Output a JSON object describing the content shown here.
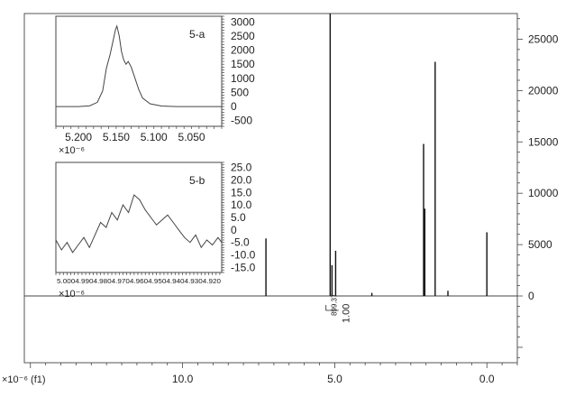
{
  "chart_data": [
    {
      "id": "main",
      "type": "line",
      "xaxis": {
        "ticks": [
          "10.0",
          "5.0",
          "0.0"
        ],
        "tick_values": [
          10,
          5,
          0
        ],
        "label": "×10⁻⁶ (f1)",
        "range": [
          15.2,
          -1.0
        ],
        "reversed": true
      },
      "yaxis": {
        "ticks": [
          "0",
          "5000",
          "10000",
          "15000",
          "20000",
          "25000"
        ],
        "tick_values": [
          0,
          5000,
          10000,
          15000,
          20000,
          25000
        ],
        "range": [
          -6500,
          27500
        ],
        "side": "right"
      },
      "grid": false,
      "peaks": [
        {
          "x": 7.26,
          "y": 5600
        },
        {
          "x": 5.15,
          "y": 27500
        },
        {
          "x": 5.09,
          "y": 3000
        },
        {
          "x": 4.97,
          "y": 4400
        },
        {
          "x": 3.78,
          "y": 300
        },
        {
          "x": 2.08,
          "y": 14800
        },
        {
          "x": 2.04,
          "y": 8500
        },
        {
          "x": 1.7,
          "y": 22800
        },
        {
          "x": 1.28,
          "y": 500
        },
        {
          "x": 0.0,
          "y": 6200
        }
      ],
      "integral_labels": [
        "899.37",
        "1.00"
      ]
    },
    {
      "id": "inset-a",
      "type": "line",
      "label": "5-a",
      "xaxis": {
        "ticks": [
          "5.200",
          "5.150",
          "5.100",
          "5.050"
        ],
        "tick_values": [
          5.2,
          5.15,
          5.1,
          5.05
        ],
        "label": "×10⁻⁶",
        "range": [
          5.23,
          5.01
        ],
        "reversed": true
      },
      "yaxis": {
        "ticks": [
          "3000",
          "2500",
          "2000",
          "1500",
          "1000",
          "500",
          "0",
          "-500"
        ],
        "tick_values": [
          3000,
          2500,
          2000,
          1500,
          1000,
          500,
          0,
          -500
        ],
        "range": [
          -700,
          3200
        ],
        "side": "right"
      },
      "x": [
        5.23,
        5.2,
        5.185,
        5.175,
        5.168,
        5.163,
        5.158,
        5.154,
        5.151,
        5.149,
        5.146,
        5.143,
        5.14,
        5.137,
        5.134,
        5.13,
        5.125,
        5.12,
        5.115,
        5.105,
        5.09,
        5.07,
        5.03,
        5.01
      ],
      "y": [
        0,
        0,
        30,
        150,
        550,
        1350,
        1850,
        2350,
        2720,
        2850,
        2500,
        1950,
        1650,
        1500,
        1600,
        1400,
        1000,
        600,
        300,
        100,
        20,
        0,
        0,
        0
      ]
    },
    {
      "id": "inset-b",
      "type": "line",
      "label": "5-b",
      "xaxis": {
        "ticks": [
          "5.000",
          "4.990",
          "4.980",
          "4.970",
          "4.960",
          "4.950",
          "4.940",
          "4.930",
          "4.920"
        ],
        "tick_values": [
          5.0,
          4.99,
          4.98,
          4.97,
          4.96,
          4.95,
          4.94,
          4.93,
          4.92
        ],
        "tick_label_run": "5.0004.9904.9804.9704.9604.9504.9404.9304.920",
        "label": "×10⁻⁶",
        "range": [
          5.002,
          4.913
        ],
        "reversed": true
      },
      "yaxis": {
        "ticks": [
          "25.0",
          "20.0",
          "15.0",
          "10.0",
          "5.0",
          "0",
          "-5.0",
          "-10.0",
          "-15.0"
        ],
        "tick_values": [
          25,
          20,
          15,
          10,
          5,
          0,
          -5,
          -10,
          -15
        ],
        "range": [
          -17,
          27
        ],
        "side": "right"
      },
      "x": [
        5.002,
        4.999,
        4.996,
        4.993,
        4.99,
        4.987,
        4.984,
        4.981,
        4.978,
        4.975,
        4.972,
        4.969,
        4.966,
        4.963,
        4.96,
        4.957,
        4.954,
        4.951,
        4.948,
        4.945,
        4.942,
        4.939,
        4.936,
        4.933,
        4.93,
        4.927,
        4.924,
        4.921,
        4.918,
        4.915,
        4.913
      ],
      "y": [
        -4,
        -8,
        -5,
        -9,
        -6,
        -3,
        -7,
        -2,
        3,
        1,
        7,
        4,
        10,
        7,
        14,
        12,
        8,
        5,
        2,
        4,
        6,
        3,
        0,
        -3,
        -5,
        -2,
        -7,
        -4,
        -6,
        -3,
        -5
      ]
    }
  ]
}
